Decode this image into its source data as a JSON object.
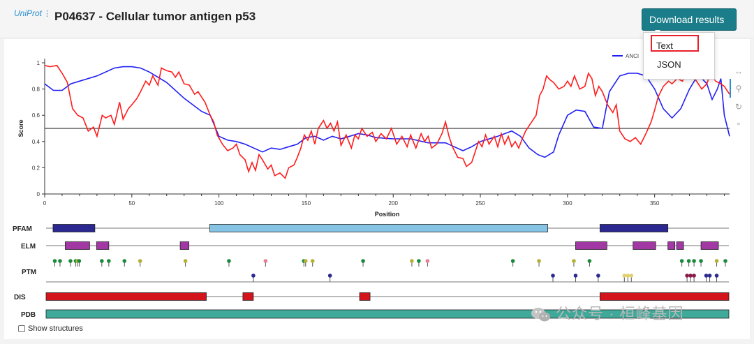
{
  "header": {
    "logo_text": "UniProt",
    "title": "P04637 - Cellular tumor antigen p53",
    "download_label": "Download results"
  },
  "download_menu": {
    "items": [
      "Text",
      "JSON"
    ],
    "highlighted": "Text"
  },
  "chart_data": {
    "type": "line",
    "xlabel": "Position",
    "ylabel": "Score",
    "xlim": [
      0,
      393
    ],
    "ylim": [
      0,
      1
    ],
    "x_ticks": [
      0,
      50,
      100,
      150,
      200,
      250,
      300,
      350
    ],
    "y_ticks": [
      0,
      0.2,
      0.4,
      0.6,
      0.8,
      1
    ],
    "threshold": 0.5,
    "legend": "ANCI",
    "series": [
      {
        "name": "ANCI",
        "color": "#1f1ff5",
        "points": [
          [
            0,
            0.84
          ],
          [
            5,
            0.79
          ],
          [
            10,
            0.79
          ],
          [
            15,
            0.84
          ],
          [
            20,
            0.86
          ],
          [
            30,
            0.9
          ],
          [
            40,
            0.96
          ],
          [
            45,
            0.97
          ],
          [
            50,
            0.97
          ],
          [
            55,
            0.96
          ],
          [
            60,
            0.93
          ],
          [
            70,
            0.85
          ],
          [
            80,
            0.73
          ],
          [
            90,
            0.63
          ],
          [
            95,
            0.6
          ],
          [
            100,
            0.44
          ],
          [
            105,
            0.41
          ],
          [
            110,
            0.4
          ],
          [
            115,
            0.38
          ],
          [
            120,
            0.35
          ],
          [
            125,
            0.32
          ],
          [
            130,
            0.35
          ],
          [
            135,
            0.34
          ],
          [
            140,
            0.36
          ],
          [
            145,
            0.38
          ],
          [
            150,
            0.43
          ],
          [
            155,
            0.44
          ],
          [
            160,
            0.41
          ],
          [
            165,
            0.44
          ],
          [
            170,
            0.42
          ],
          [
            175,
            0.44
          ],
          [
            180,
            0.46
          ],
          [
            185,
            0.45
          ],
          [
            190,
            0.43
          ],
          [
            200,
            0.42
          ],
          [
            210,
            0.42
          ],
          [
            220,
            0.39
          ],
          [
            230,
            0.39
          ],
          [
            235,
            0.36
          ],
          [
            240,
            0.33
          ],
          [
            245,
            0.36
          ],
          [
            250,
            0.4
          ],
          [
            260,
            0.44
          ],
          [
            268,
            0.48
          ],
          [
            273,
            0.44
          ],
          [
            278,
            0.35
          ],
          [
            283,
            0.3
          ],
          [
            287,
            0.28
          ],
          [
            292,
            0.32
          ],
          [
            295,
            0.45
          ],
          [
            300,
            0.6
          ],
          [
            305,
            0.64
          ],
          [
            310,
            0.63
          ],
          [
            315,
            0.51
          ],
          [
            320,
            0.5
          ],
          [
            324,
            0.78
          ],
          [
            330,
            0.9
          ],
          [
            335,
            0.92
          ],
          [
            340,
            0.92
          ],
          [
            345,
            0.9
          ],
          [
            350,
            0.8
          ],
          [
            355,
            0.65
          ],
          [
            360,
            0.58
          ],
          [
            365,
            0.65
          ],
          [
            370,
            0.8
          ],
          [
            375,
            0.91
          ],
          [
            380,
            0.84
          ],
          [
            383,
            0.72
          ],
          [
            386,
            0.8
          ],
          [
            388,
            0.88
          ],
          [
            390,
            0.6
          ],
          [
            393,
            0.44
          ]
        ]
      },
      {
        "name": "",
        "color": "#ff1c1c",
        "points": [
          [
            0,
            0.98
          ],
          [
            3,
            0.97
          ],
          [
            7,
            0.98
          ],
          [
            10,
            0.92
          ],
          [
            13,
            0.85
          ],
          [
            16,
            0.65
          ],
          [
            19,
            0.6
          ],
          [
            22,
            0.58
          ],
          [
            25,
            0.48
          ],
          [
            28,
            0.51
          ],
          [
            30,
            0.44
          ],
          [
            33,
            0.6
          ],
          [
            35,
            0.58
          ],
          [
            38,
            0.6
          ],
          [
            40,
            0.53
          ],
          [
            43,
            0.7
          ],
          [
            45,
            0.57
          ],
          [
            48,
            0.65
          ],
          [
            50,
            0.68
          ],
          [
            53,
            0.73
          ],
          [
            55,
            0.78
          ],
          [
            58,
            0.86
          ],
          [
            60,
            0.83
          ],
          [
            62,
            0.9
          ],
          [
            65,
            0.83
          ],
          [
            67,
            0.96
          ],
          [
            70,
            0.94
          ],
          [
            73,
            0.93
          ],
          [
            75,
            0.89
          ],
          [
            77,
            0.93
          ],
          [
            80,
            0.84
          ],
          [
            83,
            0.83
          ],
          [
            86,
            0.76
          ],
          [
            88,
            0.78
          ],
          [
            90,
            0.74
          ],
          [
            92,
            0.7
          ],
          [
            95,
            0.6
          ],
          [
            97,
            0.55
          ],
          [
            99,
            0.45
          ],
          [
            102,
            0.38
          ],
          [
            105,
            0.33
          ],
          [
            108,
            0.35
          ],
          [
            110,
            0.38
          ],
          [
            112,
            0.3
          ],
          [
            115,
            0.26
          ],
          [
            117,
            0.17
          ],
          [
            119,
            0.24
          ],
          [
            121,
            0.18
          ],
          [
            123,
            0.3
          ],
          [
            125,
            0.26
          ],
          [
            128,
            0.19
          ],
          [
            130,
            0.22
          ],
          [
            132,
            0.14
          ],
          [
            135,
            0.16
          ],
          [
            138,
            0.12
          ],
          [
            140,
            0.2
          ],
          [
            143,
            0.22
          ],
          [
            145,
            0.28
          ],
          [
            147,
            0.35
          ],
          [
            149,
            0.45
          ],
          [
            151,
            0.41
          ],
          [
            153,
            0.48
          ],
          [
            155,
            0.38
          ],
          [
            157,
            0.5
          ],
          [
            160,
            0.56
          ],
          [
            162,
            0.5
          ],
          [
            164,
            0.54
          ],
          [
            166,
            0.48
          ],
          [
            168,
            0.55
          ],
          [
            170,
            0.37
          ],
          [
            173,
            0.45
          ],
          [
            176,
            0.35
          ],
          [
            178,
            0.45
          ],
          [
            180,
            0.42
          ],
          [
            182,
            0.5
          ],
          [
            185,
            0.44
          ],
          [
            188,
            0.47
          ],
          [
            190,
            0.4
          ],
          [
            193,
            0.46
          ],
          [
            196,
            0.42
          ],
          [
            199,
            0.5
          ],
          [
            202,
            0.38
          ],
          [
            205,
            0.44
          ],
          [
            208,
            0.36
          ],
          [
            210,
            0.45
          ],
          [
            213,
            0.35
          ],
          [
            216,
            0.46
          ],
          [
            218,
            0.4
          ],
          [
            220,
            0.44
          ],
          [
            222,
            0.35
          ],
          [
            225,
            0.38
          ],
          [
            228,
            0.46
          ],
          [
            230,
            0.55
          ],
          [
            232,
            0.44
          ],
          [
            234,
            0.36
          ],
          [
            237,
            0.28
          ],
          [
            240,
            0.27
          ],
          [
            242,
            0.21
          ],
          [
            245,
            0.24
          ],
          [
            247,
            0.32
          ],
          [
            249,
            0.4
          ],
          [
            251,
            0.36
          ],
          [
            253,
            0.45
          ],
          [
            255,
            0.38
          ],
          [
            258,
            0.44
          ],
          [
            260,
            0.36
          ],
          [
            262,
            0.46
          ],
          [
            264,
            0.38
          ],
          [
            266,
            0.44
          ],
          [
            268,
            0.36
          ],
          [
            270,
            0.4
          ],
          [
            272,
            0.35
          ],
          [
            274,
            0.42
          ],
          [
            276,
            0.48
          ],
          [
            278,
            0.52
          ],
          [
            280,
            0.56
          ],
          [
            282,
            0.6
          ],
          [
            284,
            0.75
          ],
          [
            286,
            0.8
          ],
          [
            288,
            0.9
          ],
          [
            290,
            0.87
          ],
          [
            292,
            0.85
          ],
          [
            295,
            0.8
          ],
          [
            298,
            0.82
          ],
          [
            300,
            0.86
          ],
          [
            302,
            0.82
          ],
          [
            304,
            0.9
          ],
          [
            307,
            0.8
          ],
          [
            310,
            0.82
          ],
          [
            312,
            0.92
          ],
          [
            314,
            0.88
          ],
          [
            316,
            0.75
          ],
          [
            318,
            0.82
          ],
          [
            320,
            0.78
          ],
          [
            323,
            0.68
          ],
          [
            326,
            0.62
          ],
          [
            328,
            0.68
          ],
          [
            330,
            0.48
          ],
          [
            333,
            0.42
          ],
          [
            336,
            0.4
          ],
          [
            339,
            0.43
          ],
          [
            342,
            0.38
          ],
          [
            345,
            0.46
          ],
          [
            348,
            0.55
          ],
          [
            350,
            0.64
          ],
          [
            352,
            0.74
          ],
          [
            355,
            0.82
          ],
          [
            358,
            0.86
          ],
          [
            360,
            0.84
          ],
          [
            363,
            0.88
          ],
          [
            366,
            0.86
          ],
          [
            368,
            0.92
          ],
          [
            370,
            0.88
          ],
          [
            372,
            0.9
          ],
          [
            375,
            0.84
          ],
          [
            377,
            0.8
          ],
          [
            380,
            0.84
          ],
          [
            382,
            0.92
          ],
          [
            385,
            0.86
          ],
          [
            388,
            0.84
          ],
          [
            390,
            0.82
          ],
          [
            393,
            0.76
          ]
        ]
      }
    ]
  },
  "tracks": [
    {
      "label": "PFAM",
      "features": [
        {
          "start": 5,
          "end": 29,
          "color": "#2c2891"
        },
        {
          "start": 95,
          "end": 289,
          "color": "#86c4e6"
        },
        {
          "start": 319,
          "end": 358,
          "color": "#2c2891"
        }
      ]
    },
    {
      "label": "ELM",
      "features": [
        {
          "start": 12,
          "end": 26,
          "color": "#a238a4"
        },
        {
          "start": 30,
          "end": 37,
          "color": "#a238a4"
        },
        {
          "start": 78,
          "end": 83,
          "color": "#a238a4"
        },
        {
          "start": 305,
          "end": 323,
          "color": "#a238a4"
        },
        {
          "start": 338,
          "end": 351,
          "color": "#a238a4"
        },
        {
          "start": 358,
          "end": 362,
          "color": "#a238a4"
        },
        {
          "start": 363,
          "end": 367,
          "color": "#a238a4"
        },
        {
          "start": 377,
          "end": 387,
          "color": "#a238a4"
        }
      ]
    },
    {
      "label": "PTM",
      "upper_pins": [
        {
          "pos": 6,
          "color": "#1a8a3a"
        },
        {
          "pos": 9,
          "color": "#1a8a3a"
        },
        {
          "pos": 15,
          "color": "#1a8a3a"
        },
        {
          "pos": 18,
          "color": "#1a8a3a"
        },
        {
          "pos": 19,
          "color": "#b3b033"
        },
        {
          "pos": 20,
          "color": "#1a8a3a"
        },
        {
          "pos": 33,
          "color": "#1a8a3a"
        },
        {
          "pos": 37,
          "color": "#1a8a3a"
        },
        {
          "pos": 46,
          "color": "#1a8a3a"
        },
        {
          "pos": 55,
          "color": "#b3b033"
        },
        {
          "pos": 81,
          "color": "#b3b033"
        },
        {
          "pos": 106,
          "color": "#1a8a3a"
        },
        {
          "pos": 127,
          "color": "#e87d93"
        },
        {
          "pos": 149,
          "color": "#1a8a3a"
        },
        {
          "pos": 150,
          "color": "#b3b033"
        },
        {
          "pos": 154,
          "color": "#b3b033"
        },
        {
          "pos": 183,
          "color": "#1a8a3a"
        },
        {
          "pos": 211,
          "color": "#b3b033"
        },
        {
          "pos": 215,
          "color": "#1a8a3a"
        },
        {
          "pos": 220,
          "color": "#e87d93"
        },
        {
          "pos": 269,
          "color": "#1a8a3a"
        },
        {
          "pos": 284,
          "color": "#b3b033"
        },
        {
          "pos": 304,
          "color": "#b3b033"
        },
        {
          "pos": 313,
          "color": "#1a8a3a"
        },
        {
          "pos": 366,
          "color": "#1a8a3a"
        },
        {
          "pos": 370,
          "color": "#1a8a3a"
        },
        {
          "pos": 373,
          "color": "#1a8a3a"
        },
        {
          "pos": 377,
          "color": "#1a8a3a"
        },
        {
          "pos": 386,
          "color": "#b3b033"
        },
        {
          "pos": 391,
          "color": "#1a8a3a"
        }
      ],
      "lower_pins": [
        {
          "pos": 120,
          "color": "#2c2891"
        },
        {
          "pos": 164,
          "color": "#2c2891"
        },
        {
          "pos": 292,
          "color": "#2c2891"
        },
        {
          "pos": 305,
          "color": "#2c2891"
        },
        {
          "pos": 318,
          "color": "#2c2891"
        },
        {
          "pos": 333,
          "color": "#e0d070"
        },
        {
          "pos": 335,
          "color": "#e0d070"
        },
        {
          "pos": 337,
          "color": "#e0d070"
        },
        {
          "pos": 369,
          "color": "#8a1a4a"
        },
        {
          "pos": 371,
          "color": "#8a1a4a"
        },
        {
          "pos": 373,
          "color": "#8a1a4a"
        },
        {
          "pos": 380,
          "color": "#2c2891"
        },
        {
          "pos": 382,
          "color": "#2c2891"
        },
        {
          "pos": 386,
          "color": "#2c2891"
        }
      ]
    },
    {
      "label": "DIS",
      "features": [
        {
          "start": 1,
          "end": 93,
          "color": "#d4141c"
        },
        {
          "start": 114,
          "end": 120,
          "color": "#d4141c"
        },
        {
          "start": 181,
          "end": 187,
          "color": "#d4141c"
        },
        {
          "start": 319,
          "end": 393,
          "color": "#d4141c"
        }
      ]
    },
    {
      "label": "PDB",
      "features": [
        {
          "start": 1,
          "end": 393,
          "color": "#3fa99a"
        }
      ]
    }
  ],
  "footer": {
    "show_structures_label": "Show structures"
  },
  "watermark": "公众号 · 桓峰基因"
}
